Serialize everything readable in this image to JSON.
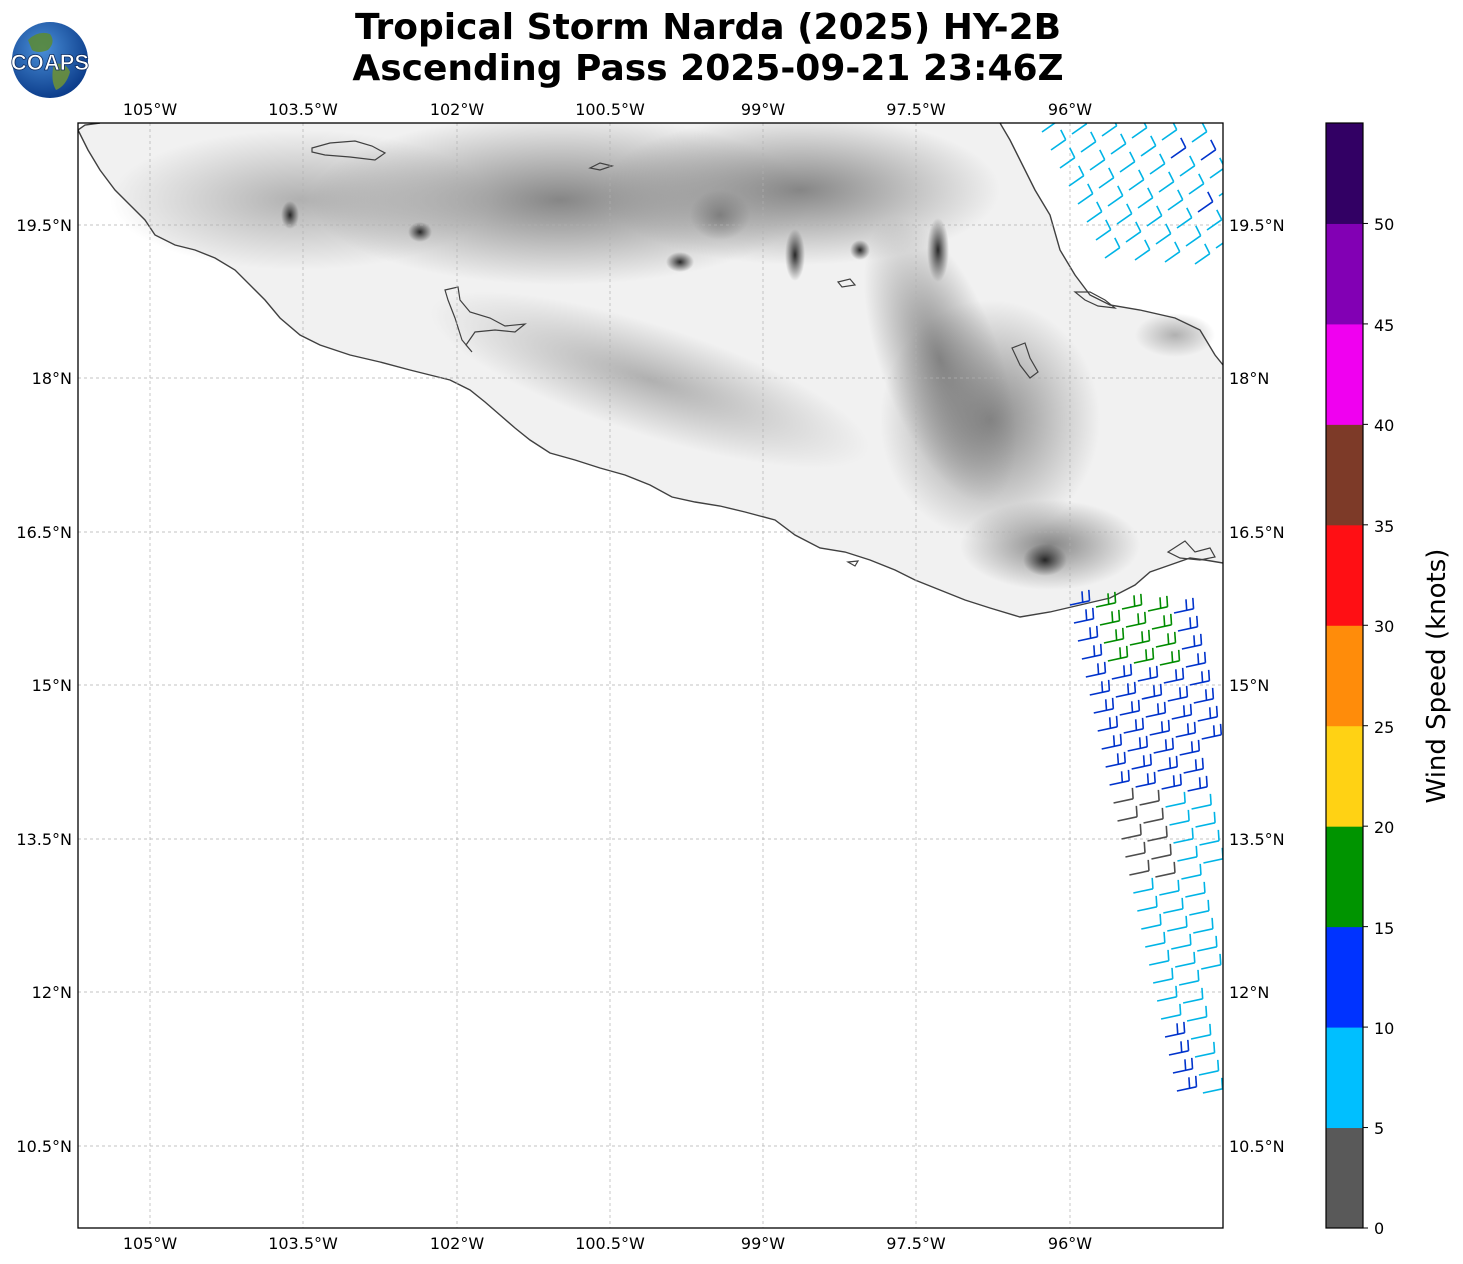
{
  "title_line1": "Tropical Storm Narda (2025) HY-2B",
  "title_line2": "Ascending Pass 2025-09-21 23:46Z",
  "logo_text": "COAPS",
  "lon_ticks": [
    "105°W",
    "103.5°W",
    "102°W",
    "100.5°W",
    "99°W",
    "97.5°W",
    "96°W"
  ],
  "lat_ticks": [
    "19.5°N",
    "18°N",
    "16.5°N",
    "15°N",
    "13.5°N",
    "12°N",
    "10.5°N"
  ],
  "colorbar": {
    "label": "Wind Speed (knots)",
    "tick_labels": [
      "0",
      "5",
      "10",
      "15",
      "20",
      "25",
      "30",
      "35",
      "40",
      "45",
      "50"
    ],
    "bins": [
      {
        "from": 0,
        "to": 5,
        "color": "#595959"
      },
      {
        "from": 5,
        "to": 10,
        "color": "#00bfff"
      },
      {
        "from": 10,
        "to": 15,
        "color": "#0033ff"
      },
      {
        "from": 15,
        "to": 20,
        "color": "#009400"
      },
      {
        "from": 20,
        "to": 25,
        "color": "#ffd214"
      },
      {
        "from": 25,
        "to": 30,
        "color": "#ff8c0a"
      },
      {
        "from": 30,
        "to": 35,
        "color": "#ff0f14"
      },
      {
        "from": 35,
        "to": 40,
        "color": "#7d3a28"
      },
      {
        "from": 40,
        "to": 45,
        "color": "#f000f0"
      },
      {
        "from": 45,
        "to": 50,
        "color": "#8200b4"
      },
      {
        "from": 50,
        "to": 55,
        "color": "#320064"
      }
    ]
  },
  "colors": {
    "coastline": "#404040",
    "grid": "#b0b0b0",
    "land": "#f2f2f2"
  }
}
